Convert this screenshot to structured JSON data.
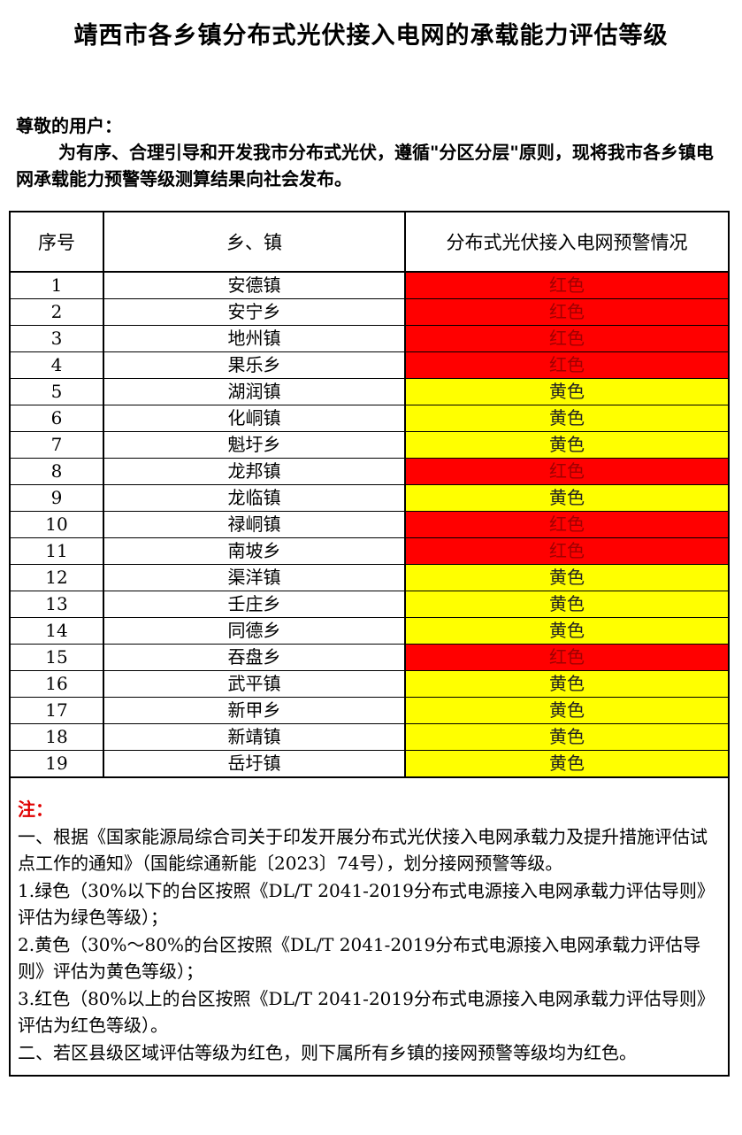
{
  "title": "靖西市各乡镇分布式光伏接入电网的承载能力评估等级",
  "intro": {
    "greeting": "尊敬的用户：",
    "body": "为有序、合理引导和开发我市分布式光伏，遵循\"分区分层\"原则，现将我市各乡镇电网承载能力预警等级测算结果向社会发布。"
  },
  "table": {
    "headers": [
      "序号",
      "乡、镇",
      "分布式光伏接入电网预警情况"
    ],
    "colors": {
      "红色": "#ff0000",
      "黄色": "#ffff00"
    },
    "rows": [
      {
        "no": "1",
        "town": "安德镇",
        "level": "红色"
      },
      {
        "no": "2",
        "town": "安宁乡",
        "level": "红色"
      },
      {
        "no": "3",
        "town": "地州镇",
        "level": "红色"
      },
      {
        "no": "4",
        "town": "果乐乡",
        "level": "红色"
      },
      {
        "no": "5",
        "town": "湖润镇",
        "level": "黄色"
      },
      {
        "no": "6",
        "town": "化峒镇",
        "level": "黄色"
      },
      {
        "no": "7",
        "town": "魁圩乡",
        "level": "黄色"
      },
      {
        "no": "8",
        "town": "龙邦镇",
        "level": "红色"
      },
      {
        "no": "9",
        "town": "龙临镇",
        "level": "黄色"
      },
      {
        "no": "10",
        "town": "禄峒镇",
        "level": "红色"
      },
      {
        "no": "11",
        "town": "南坡乡",
        "level": "红色"
      },
      {
        "no": "12",
        "town": "渠洋镇",
        "level": "黄色"
      },
      {
        "no": "13",
        "town": "壬庄乡",
        "level": "黄色"
      },
      {
        "no": "14",
        "town": "同德乡",
        "level": "黄色"
      },
      {
        "no": "15",
        "town": "吞盘乡",
        "level": "红色"
      },
      {
        "no": "16",
        "town": "武平镇",
        "level": "黄色"
      },
      {
        "no": "17",
        "town": "新甲乡",
        "level": "黄色"
      },
      {
        "no": "18",
        "town": "新靖镇",
        "level": "黄色"
      },
      {
        "no": "19",
        "town": "岳圩镇",
        "level": "黄色"
      }
    ]
  },
  "notes": {
    "heading": "注：",
    "lines": [
      "一、根据《国家能源局综合司关于印发开展分布式光伏接入电网承载力及提升措施评估试点工作的通知》（国能综通新能〔2023〕74号），划分接网预警等级。",
      "1.绿色（30%以下的台区按照《DL/T 2041-2019分布式电源接入电网承载力评估导则》评估为绿色等级）；",
      "2.黄色（30%～80%的台区按照《DL/T 2041-2019分布式电源接入电网承载力评估导则》评估为黄色等级）；",
      "3.红色（80%以上的台区按照《DL/T 2041-2019分布式电源接入电网承载力评估导则》评估为红色等级）。",
      "二、若区县级区域评估等级为红色，则下属所有乡镇的接网预警等级均为红色。"
    ]
  }
}
